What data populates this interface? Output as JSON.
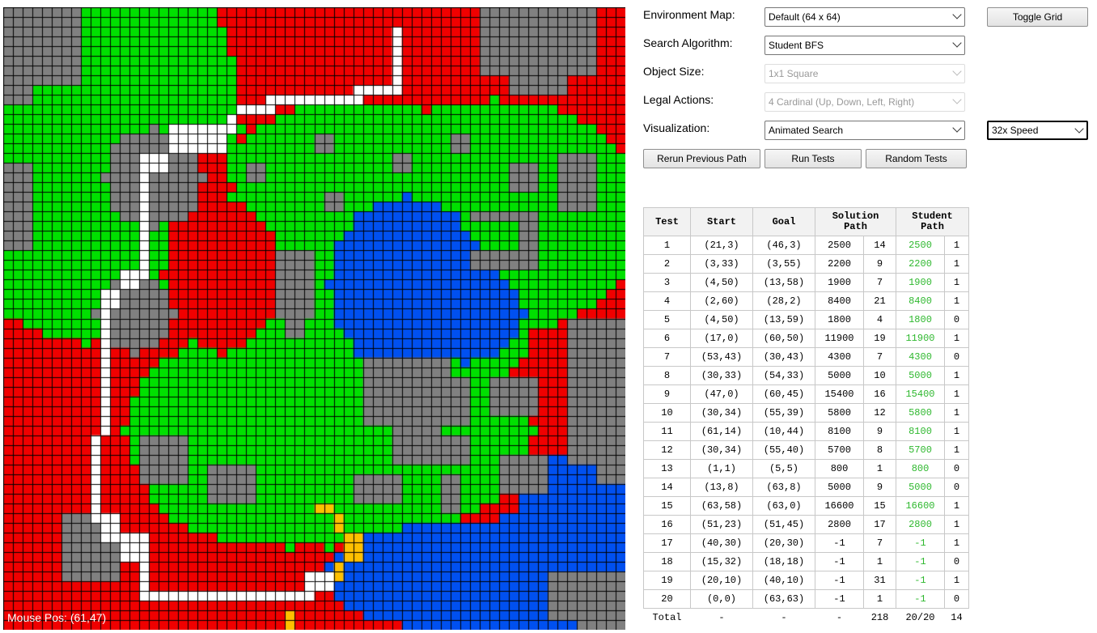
{
  "map": {
    "mouse_pos": "Mouse Pos: (61,47)",
    "grid_size": 64,
    "colors": {
      "wall": "#808080",
      "grass": "#00e000",
      "water": "#0050f0",
      "lava": "#f00000",
      "path": "#ffffff",
      "goal": "#ffc000",
      "grid": "#000000"
    }
  },
  "controls": {
    "environment_label": "Environment Map:",
    "environment_value": "Default (64 x 64)",
    "algorithm_label": "Search Algorithm:",
    "algorithm_value": "Student BFS",
    "object_label": "Object Size:",
    "object_value": "1x1 Square",
    "actions_label": "Legal Actions:",
    "actions_value": "4 Cardinal (Up, Down, Left, Right)",
    "visualization_label": "Visualization:",
    "visualization_value": "Animated Search",
    "speed_value": "32x Speed",
    "toggle_grid": "Toggle Grid",
    "rerun": "Rerun Previous Path",
    "run_tests": "Run Tests",
    "random_tests": "Random Tests"
  },
  "table": {
    "headers": {
      "test": "Test",
      "start": "Start",
      "goal": "Goal",
      "solution_1": "Solution",
      "solution_2": "Path",
      "student_1": "Student",
      "student_2": "Path"
    },
    "rows": [
      {
        "test": "1",
        "start": "(21,3)",
        "goal": "(46,3)",
        "sol_cost": "2500",
        "sol_len": "14",
        "stu_cost": "2500",
        "stu_len": "1"
      },
      {
        "test": "2",
        "start": "(3,33)",
        "goal": "(3,55)",
        "sol_cost": "2200",
        "sol_len": "9",
        "stu_cost": "2200",
        "stu_len": "1"
      },
      {
        "test": "3",
        "start": "(4,50)",
        "goal": "(13,58)",
        "sol_cost": "1900",
        "sol_len": "7",
        "stu_cost": "1900",
        "stu_len": "1"
      },
      {
        "test": "4",
        "start": "(2,60)",
        "goal": "(28,2)",
        "sol_cost": "8400",
        "sol_len": "21",
        "stu_cost": "8400",
        "stu_len": "1"
      },
      {
        "test": "5",
        "start": "(4,50)",
        "goal": "(13,59)",
        "sol_cost": "1800",
        "sol_len": "4",
        "stu_cost": "1800",
        "stu_len": "0"
      },
      {
        "test": "6",
        "start": "(17,0)",
        "goal": "(60,50)",
        "sol_cost": "11900",
        "sol_len": "19",
        "stu_cost": "11900",
        "stu_len": "1"
      },
      {
        "test": "7",
        "start": "(53,43)",
        "goal": "(30,43)",
        "sol_cost": "4300",
        "sol_len": "7",
        "stu_cost": "4300",
        "stu_len": "0"
      },
      {
        "test": "8",
        "start": "(30,33)",
        "goal": "(54,33)",
        "sol_cost": "5000",
        "sol_len": "10",
        "stu_cost": "5000",
        "stu_len": "1"
      },
      {
        "test": "9",
        "start": "(47,0)",
        "goal": "(60,45)",
        "sol_cost": "15400",
        "sol_len": "16",
        "stu_cost": "15400",
        "stu_len": "1"
      },
      {
        "test": "10",
        "start": "(30,34)",
        "goal": "(55,39)",
        "sol_cost": "5800",
        "sol_len": "12",
        "stu_cost": "5800",
        "stu_len": "1"
      },
      {
        "test": "11",
        "start": "(61,14)",
        "goal": "(10,44)",
        "sol_cost": "8100",
        "sol_len": "9",
        "stu_cost": "8100",
        "stu_len": "1"
      },
      {
        "test": "12",
        "start": "(30,34)",
        "goal": "(55,40)",
        "sol_cost": "5700",
        "sol_len": "8",
        "stu_cost": "5700",
        "stu_len": "1"
      },
      {
        "test": "13",
        "start": "(1,1)",
        "goal": "(5,5)",
        "sol_cost": "800",
        "sol_len": "1",
        "stu_cost": "800",
        "stu_len": "0"
      },
      {
        "test": "14",
        "start": "(13,8)",
        "goal": "(63,8)",
        "sol_cost": "5000",
        "sol_len": "9",
        "stu_cost": "5000",
        "stu_len": "0"
      },
      {
        "test": "15",
        "start": "(63,58)",
        "goal": "(63,0)",
        "sol_cost": "16600",
        "sol_len": "15",
        "stu_cost": "16600",
        "stu_len": "1"
      },
      {
        "test": "16",
        "start": "(51,23)",
        "goal": "(51,45)",
        "sol_cost": "2800",
        "sol_len": "17",
        "stu_cost": "2800",
        "stu_len": "1"
      },
      {
        "test": "17",
        "start": "(40,30)",
        "goal": "(20,30)",
        "sol_cost": "-1",
        "sol_len": "7",
        "stu_cost": "-1",
        "stu_len": "1"
      },
      {
        "test": "18",
        "start": "(15,32)",
        "goal": "(18,18)",
        "sol_cost": "-1",
        "sol_len": "1",
        "stu_cost": "-1",
        "stu_len": "0"
      },
      {
        "test": "19",
        "start": "(20,10)",
        "goal": "(40,10)",
        "sol_cost": "-1",
        "sol_len": "31",
        "stu_cost": "-1",
        "stu_len": "1"
      },
      {
        "test": "20",
        "start": "(0,0)",
        "goal": "(63,63)",
        "sol_cost": "-1",
        "sol_len": "1",
        "stu_cost": "-1",
        "stu_len": "0"
      }
    ],
    "total": {
      "test": "Total",
      "start": "-",
      "goal": "-",
      "sol_cost": "-",
      "sol_len": "218",
      "stu_cost": "20/20",
      "stu_len": "14"
    }
  }
}
